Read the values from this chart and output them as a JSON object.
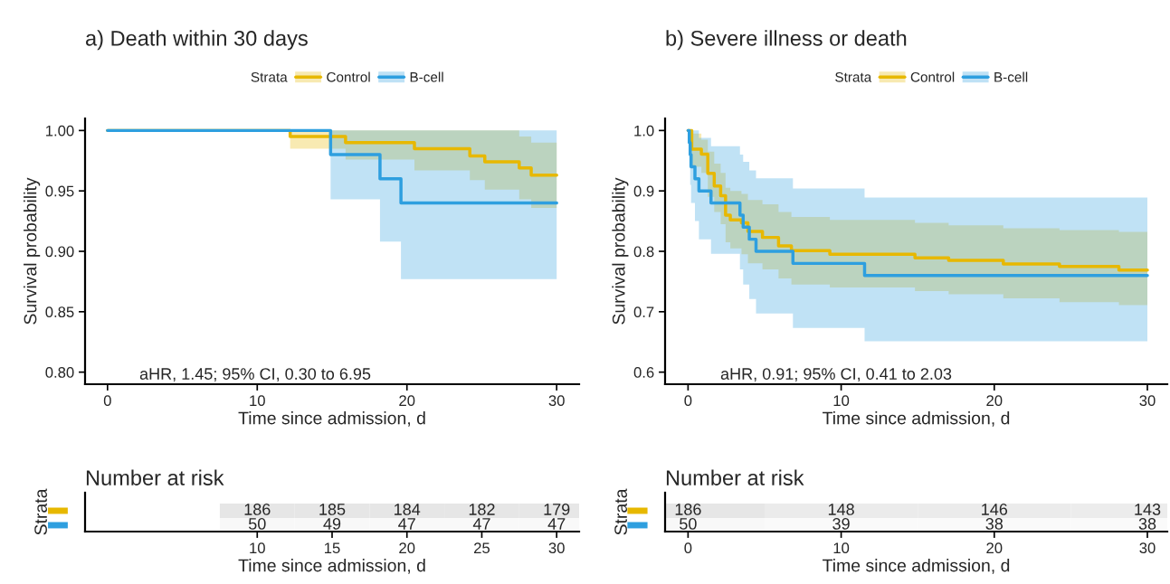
{
  "chart_data": [
    {
      "type": "step",
      "title": "a) Death within 30 days",
      "xlabel": "Time since admission, d",
      "ylabel": "Survival probability",
      "legend_title": "Strata",
      "legend": "top",
      "xlim": [
        -1.5,
        31.5
      ],
      "xticks": [
        0,
        10,
        20,
        30
      ],
      "ylim": [
        0.79,
        1.01
      ],
      "yticks": [
        {
          "value": 0.8,
          "label": "0.80"
        },
        {
          "value": 0.85,
          "label": "0.85"
        },
        {
          "value": 0.9,
          "label": "0.90"
        },
        {
          "value": 0.95,
          "label": "0.95"
        },
        {
          "value": 1.0,
          "label": "1.00"
        }
      ],
      "annotations": [
        "aHR, 1.45; 95% CI, 0.30 to 6.95"
      ],
      "series": [
        {
          "name": "Control",
          "color": "#e7b800",
          "x": [
            0,
            12.2,
            15.9,
            20.5,
            24.2,
            25.2,
            27.5,
            28.3,
            30
          ],
          "values": [
            1,
            0.995,
            0.99,
            0.985,
            0.979,
            0.974,
            0.969,
            0.963,
            0.963
          ],
          "lower": [
            1,
            0.985,
            0.976,
            0.967,
            0.959,
            0.951,
            0.943,
            0.936,
            0.936
          ],
          "upper": [
            1,
            1,
            1,
            1,
            1,
            1,
            0.995,
            0.99,
            0.99
          ]
        },
        {
          "name": "B-cell",
          "color": "#2e9fdf",
          "x": [
            0,
            14.9,
            18.2,
            19.6,
            30
          ],
          "values": [
            1,
            0.98,
            0.96,
            0.94,
            0.94
          ],
          "lower": [
            1,
            0.943,
            0.908,
            0.877,
            0.877
          ],
          "upper": [
            1,
            1,
            1,
            1,
            1
          ]
        }
      ]
    },
    {
      "type": "step",
      "title": "b) Severe illness or death",
      "xlabel": "Time since admission, d",
      "ylabel": "Survival probability",
      "legend_title": "Strata",
      "legend": "top",
      "xlim": [
        -1.5,
        31.3
      ],
      "xticks": [
        0,
        10,
        20,
        30
      ],
      "ylim": [
        0.58,
        1.02
      ],
      "yticks": [
        0.6,
        0.7,
        0.8,
        0.9,
        {
          "value": 1.0,
          "label": "1.0"
        }
      ],
      "annotations": [
        "aHR, 0.91; 95% CI, 0.41 to 2.03"
      ],
      "series": [
        {
          "name": "Control",
          "color": "#e7b800",
          "x": [
            0,
            0.24,
            0.87,
            1.29,
            1.71,
            2.13,
            2.45,
            2.76,
            3.49,
            3.91,
            4.86,
            5.91,
            6.75,
            9.26,
            14.82,
            17.02,
            20.59,
            24.26,
            28.14,
            30
          ],
          "values": [
            1,
            0.969,
            0.961,
            0.929,
            0.908,
            0.892,
            0.86,
            0.852,
            0.847,
            0.833,
            0.823,
            0.809,
            0.801,
            0.795,
            0.789,
            0.785,
            0.779,
            0.775,
            0.769,
            0.769
          ],
          "lower": [
            1,
            0.94,
            0.93,
            0.89,
            0.865,
            0.845,
            0.815,
            0.805,
            0.795,
            0.78,
            0.77,
            0.755,
            0.745,
            0.74,
            0.734,
            0.729,
            0.722,
            0.716,
            0.711,
            0.711
          ],
          "upper": [
            1,
            0.995,
            0.985,
            0.965,
            0.945,
            0.93,
            0.905,
            0.9,
            0.895,
            0.885,
            0.878,
            0.865,
            0.857,
            0.852,
            0.847,
            0.843,
            0.838,
            0.835,
            0.832,
            0.832
          ]
        },
        {
          "name": "B-cell",
          "color": "#2e9fdf",
          "x": [
            0,
            0.08,
            0.14,
            0.2,
            0.45,
            0.71,
            1.5,
            3.39,
            3.6,
            4.0,
            4.44,
            6.85,
            11.53,
            30
          ],
          "values": [
            1,
            0.98,
            0.96,
            0.94,
            0.92,
            0.9,
            0.88,
            0.86,
            0.84,
            0.82,
            0.8,
            0.78,
            0.76,
            0.76
          ],
          "lower": [
            1,
            0.94,
            0.91,
            0.88,
            0.85,
            0.82,
            0.796,
            0.77,
            0.745,
            0.721,
            0.697,
            0.673,
            0.651,
            0.651
          ],
          "upper": [
            1,
            1,
            1,
            1,
            1,
            0.988,
            0.974,
            0.96,
            0.948,
            0.934,
            0.921,
            0.904,
            0.889,
            0.889
          ]
        }
      ]
    },
    {
      "type": "heatmap",
      "title": "Number at risk",
      "xlabel": "Time since admission, d",
      "ylabel": "Strata",
      "categories": [
        "10",
        "15",
        "20",
        "25",
        "30"
      ],
      "y_categories": [
        null,
        null
      ],
      "cells": [
        [
          186,
          185,
          184,
          182,
          179
        ],
        [
          50,
          49,
          47,
          47,
          47
        ]
      ],
      "cell_labels": [
        [
          "186",
          "185",
          "184",
          "182",
          "179"
        ],
        [
          "50",
          "49",
          "47",
          "47",
          "47"
        ]
      ]
    },
    {
      "type": "heatmap",
      "title": "Number at risk",
      "xlabel": "Time since admission, d",
      "ylabel": "Strata",
      "categories": [
        "0",
        "10",
        "20",
        "30"
      ],
      "y_categories": [
        null,
        null
      ],
      "cells": [
        [
          186,
          148,
          146,
          143
        ],
        [
          50,
          39,
          38,
          38
        ]
      ],
      "cell_labels": [
        [
          "186",
          "148",
          "146",
          "143"
        ],
        [
          "50",
          "39",
          "38",
          "38"
        ]
      ]
    }
  ]
}
